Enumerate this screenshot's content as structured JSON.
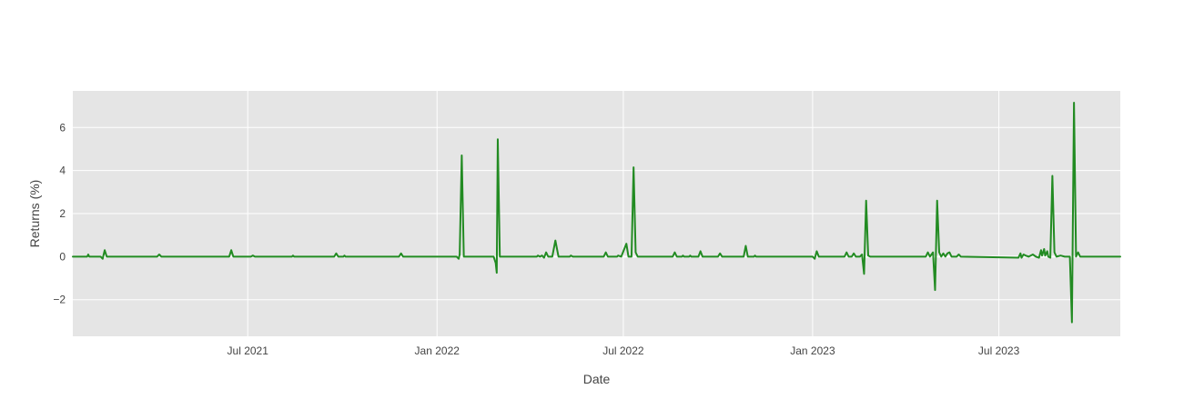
{
  "chart_data": {
    "type": "line",
    "title": "",
    "xlabel": "Date",
    "ylabel": "Returns (%)",
    "x_type": "date",
    "xlim": [
      "2021-01-12",
      "2023-10-27"
    ],
    "ylim": [
      -3.7,
      7.7
    ],
    "grid": true,
    "legend": "none",
    "x_ticks": [
      {
        "date": "2021-07-01",
        "label": "Jul 2021"
      },
      {
        "date": "2022-01-01",
        "label": "Jan 2022"
      },
      {
        "date": "2022-07-01",
        "label": "Jul 2022"
      },
      {
        "date": "2023-01-01",
        "label": "Jan 2023"
      },
      {
        "date": "2023-07-01",
        "label": "Jul 2023"
      }
    ],
    "y_ticks": [
      {
        "value": -2,
        "label": "−2"
      },
      {
        "value": 0,
        "label": "0"
      },
      {
        "value": 2,
        "label": "2"
      },
      {
        "value": 4,
        "label": "4"
      },
      {
        "value": 6,
        "label": "6"
      }
    ],
    "series": [
      {
        "color": "#228b22",
        "points": [
          [
            "2021-01-12",
            0
          ],
          [
            "2021-01-26",
            0
          ],
          [
            "2021-01-27",
            0.1
          ],
          [
            "2021-01-28",
            0
          ],
          [
            "2021-02-08",
            0
          ],
          [
            "2021-02-10",
            -0.1
          ],
          [
            "2021-02-12",
            0.3
          ],
          [
            "2021-02-14",
            0
          ],
          [
            "2021-02-20",
            0
          ],
          [
            "2021-04-04",
            0
          ],
          [
            "2021-04-06",
            0.1
          ],
          [
            "2021-04-08",
            0
          ],
          [
            "2021-06-13",
            0
          ],
          [
            "2021-06-15",
            0.3
          ],
          [
            "2021-06-17",
            0
          ],
          [
            "2021-07-04",
            0
          ],
          [
            "2021-07-06",
            0.05
          ],
          [
            "2021-07-08",
            0
          ],
          [
            "2021-08-13",
            0
          ],
          [
            "2021-08-14",
            0.05
          ],
          [
            "2021-08-15",
            0
          ],
          [
            "2021-09-23",
            0
          ],
          [
            "2021-09-25",
            0.15
          ],
          [
            "2021-09-27",
            0
          ],
          [
            "2021-10-02",
            0
          ],
          [
            "2021-10-03",
            0.05
          ],
          [
            "2021-10-04",
            0
          ],
          [
            "2021-11-25",
            0
          ],
          [
            "2021-11-27",
            0.15
          ],
          [
            "2021-11-29",
            0
          ],
          [
            "2022-01-20",
            0
          ],
          [
            "2022-01-22",
            -0.1
          ],
          [
            "2022-01-23",
            0.1
          ],
          [
            "2022-01-25",
            4.7
          ],
          [
            "2022-01-27",
            0
          ],
          [
            "2022-02-25",
            0
          ],
          [
            "2022-02-27",
            -0.3
          ],
          [
            "2022-02-28",
            -0.75
          ],
          [
            "2022-03-01",
            5.45
          ],
          [
            "2022-03-03",
            0
          ],
          [
            "2022-04-08",
            0
          ],
          [
            "2022-04-09",
            0.05
          ],
          [
            "2022-04-11",
            0
          ],
          [
            "2022-04-13",
            0.05
          ],
          [
            "2022-04-15",
            -0.05
          ],
          [
            "2022-04-17",
            0.2
          ],
          [
            "2022-04-19",
            0
          ],
          [
            "2022-04-23",
            0
          ],
          [
            "2022-04-26",
            0.75
          ],
          [
            "2022-04-29",
            0
          ],
          [
            "2022-05-10",
            0
          ],
          [
            "2022-05-11",
            0.05
          ],
          [
            "2022-05-13",
            0
          ],
          [
            "2022-06-12",
            0
          ],
          [
            "2022-06-14",
            0.2
          ],
          [
            "2022-06-16",
            0
          ],
          [
            "2022-06-25",
            0
          ],
          [
            "2022-06-26",
            0.05
          ],
          [
            "2022-06-29",
            0
          ],
          [
            "2022-07-04",
            0.6
          ],
          [
            "2022-07-06",
            0
          ],
          [
            "2022-07-09",
            0
          ],
          [
            "2022-07-11",
            4.15
          ],
          [
            "2022-07-13",
            0.2
          ],
          [
            "2022-07-15",
            0
          ],
          [
            "2022-08-18",
            0
          ],
          [
            "2022-08-20",
            0.2
          ],
          [
            "2022-08-22",
            0
          ],
          [
            "2022-08-27",
            0
          ],
          [
            "2022-08-28",
            0.05
          ],
          [
            "2022-08-29",
            0
          ],
          [
            "2022-09-03",
            0
          ],
          [
            "2022-09-04",
            0.05
          ],
          [
            "2022-09-05",
            0
          ],
          [
            "2022-09-12",
            0
          ],
          [
            "2022-09-14",
            0.25
          ],
          [
            "2022-09-16",
            0
          ],
          [
            "2022-10-01",
            0
          ],
          [
            "2022-10-03",
            0.15
          ],
          [
            "2022-10-05",
            0
          ],
          [
            "2022-10-26",
            0
          ],
          [
            "2022-10-28",
            0.5
          ],
          [
            "2022-10-30",
            0
          ],
          [
            "2022-11-05",
            0
          ],
          [
            "2022-11-06",
            0.05
          ],
          [
            "2022-11-07",
            0
          ],
          [
            "2023-01-01",
            0
          ],
          [
            "2023-01-03",
            -0.1
          ],
          [
            "2023-01-05",
            0.25
          ],
          [
            "2023-01-07",
            0
          ],
          [
            "2023-02-01",
            0
          ],
          [
            "2023-02-03",
            0.2
          ],
          [
            "2023-02-05",
            0
          ],
          [
            "2023-02-08",
            0
          ],
          [
            "2023-02-10",
            0.15
          ],
          [
            "2023-02-12",
            0
          ],
          [
            "2023-02-16",
            0
          ],
          [
            "2023-02-18",
            0.1
          ],
          [
            "2023-02-20",
            -0.8
          ],
          [
            "2023-02-22",
            2.6
          ],
          [
            "2023-02-24",
            0.05
          ],
          [
            "2023-02-26",
            0
          ],
          [
            "2023-04-21",
            0
          ],
          [
            "2023-04-23",
            0.2
          ],
          [
            "2023-04-25",
            0
          ],
          [
            "2023-04-28",
            0.2
          ],
          [
            "2023-04-30",
            -1.55
          ],
          [
            "2023-05-02",
            2.6
          ],
          [
            "2023-05-04",
            0.2
          ],
          [
            "2023-05-06",
            0
          ],
          [
            "2023-05-08",
            0.15
          ],
          [
            "2023-05-10",
            0
          ],
          [
            "2023-05-12",
            0.15
          ],
          [
            "2023-05-14",
            0.2
          ],
          [
            "2023-05-16",
            0
          ],
          [
            "2023-05-21",
            0
          ],
          [
            "2023-05-23",
            0.1
          ],
          [
            "2023-05-25",
            0
          ],
          [
            "2023-07-20",
            -0.05
          ],
          [
            "2023-07-22",
            0.15
          ],
          [
            "2023-07-23",
            -0.05
          ],
          [
            "2023-07-25",
            0.1
          ],
          [
            "2023-07-27",
            0.05
          ],
          [
            "2023-07-30",
            0
          ],
          [
            "2023-08-03",
            0.1
          ],
          [
            "2023-08-06",
            0
          ],
          [
            "2023-08-09",
            -0.05
          ],
          [
            "2023-08-11",
            0.3
          ],
          [
            "2023-08-12",
            0.05
          ],
          [
            "2023-08-14",
            0.35
          ],
          [
            "2023-08-15",
            0.05
          ],
          [
            "2023-08-17",
            0.25
          ],
          [
            "2023-08-18",
            0
          ],
          [
            "2023-08-20",
            -0.05
          ],
          [
            "2023-08-22",
            3.75
          ],
          [
            "2023-08-24",
            0.2
          ],
          [
            "2023-08-26",
            0
          ],
          [
            "2023-08-30",
            0.05
          ],
          [
            "2023-09-03",
            0
          ],
          [
            "2023-09-08",
            0
          ],
          [
            "2023-09-10",
            -3.05
          ],
          [
            "2023-09-12",
            7.15
          ],
          [
            "2023-09-14",
            0
          ],
          [
            "2023-09-16",
            0.2
          ],
          [
            "2023-09-18",
            0
          ],
          [
            "2023-10-27",
            0
          ]
        ]
      }
    ]
  }
}
